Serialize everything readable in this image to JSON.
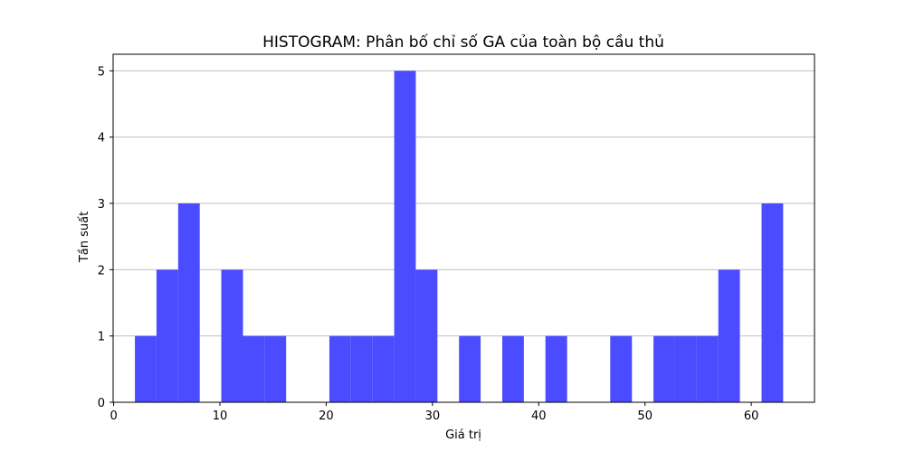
{
  "chart_data": {
    "type": "bar",
    "title": "HISTOGRAM: Phân bố chỉ số GA của toàn bộ cầu thủ",
    "xlabel": "Giá trị",
    "ylabel": "Tần suất",
    "xlim": [
      -0.05,
      65.95
    ],
    "ylim": [
      0,
      5.25
    ],
    "xticks": [
      0,
      10,
      20,
      30,
      40,
      50,
      60
    ],
    "yticks": [
      0,
      1,
      2,
      3,
      4,
      5
    ],
    "grid": "y",
    "bar_color": "#4b4bff",
    "bin_edges": [
      2.0,
      4.03,
      6.07,
      8.1,
      10.13,
      12.17,
      14.2,
      16.23,
      18.27,
      20.3,
      22.33,
      24.37,
      26.4,
      28.43,
      30.47,
      32.5,
      34.53,
      36.57,
      38.6,
      40.63,
      42.67,
      44.7,
      46.73,
      48.77,
      50.8,
      52.83,
      54.87,
      56.9,
      58.93,
      60.97,
      63.0
    ],
    "counts": [
      1,
      2,
      3,
      0,
      2,
      1,
      1,
      0,
      0,
      1,
      1,
      1,
      5,
      2,
      0,
      1,
      0,
      1,
      0,
      1,
      0,
      0,
      1,
      0,
      1,
      1,
      1,
      2,
      0,
      3
    ]
  }
}
